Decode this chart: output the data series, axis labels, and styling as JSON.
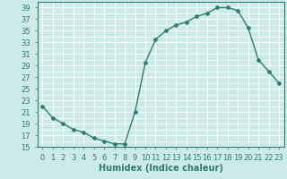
{
  "x": [
    0,
    1,
    2,
    3,
    4,
    5,
    6,
    7,
    8,
    9,
    10,
    11,
    12,
    13,
    14,
    15,
    16,
    17,
    18,
    19,
    20,
    21,
    22,
    23
  ],
  "y": [
    22,
    20,
    19,
    18,
    17.5,
    16.5,
    16,
    15.5,
    15.5,
    21,
    29.5,
    33.5,
    35,
    36,
    36.5,
    37.5,
    38,
    39,
    39,
    38.5,
    35.5,
    30,
    28,
    26
  ],
  "line_color": "#2e7d6e",
  "marker": "D",
  "marker_size": 2.5,
  "bg_color": "#cceae8",
  "grid_color": "#ffffff",
  "xlabel": "Humidex (Indice chaleur)",
  "xlim": [
    -0.5,
    23.5
  ],
  "ylim": [
    15,
    40
  ],
  "yticks": [
    15,
    17,
    19,
    21,
    23,
    25,
    27,
    29,
    31,
    33,
    35,
    37,
    39
  ],
  "xticks": [
    0,
    1,
    2,
    3,
    4,
    5,
    6,
    7,
    8,
    9,
    10,
    11,
    12,
    13,
    14,
    15,
    16,
    17,
    18,
    19,
    20,
    21,
    22,
    23
  ],
  "xtick_labels": [
    "0",
    "1",
    "2",
    "3",
    "4",
    "5",
    "6",
    "7",
    "8",
    "9",
    "10",
    "11",
    "12",
    "13",
    "14",
    "15",
    "16",
    "17",
    "18",
    "19",
    "20",
    "21",
    "22",
    "23"
  ],
  "tick_color": "#2e7d6e",
  "axis_color": "#2e7d6e",
  "label_fontsize": 6,
  "xlabel_fontsize": 7
}
